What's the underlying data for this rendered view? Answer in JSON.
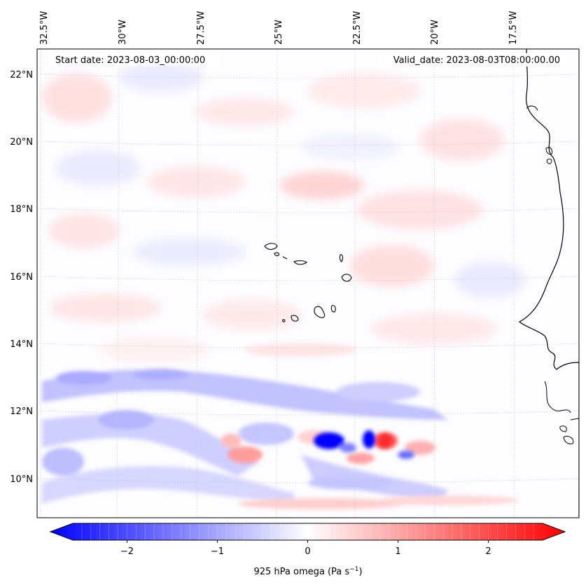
{
  "map": {
    "start_date": "Start date: 2023-08-03_00:00:00",
    "valid_date": "Valid_date: 2023-08-03T08:00:00.00",
    "lon_labels": [
      "32.5°W",
      "30°W",
      "27.5°W",
      "25°W",
      "22.5°W",
      "20°W",
      "17.5°W"
    ],
    "lat_labels": [
      "22°N",
      "20°N",
      "18°N",
      "16°N",
      "14°N",
      "12°N",
      "10°N"
    ]
  },
  "colorbar": {
    "label": "925 hPa omega (Pa s",
    "label_sup": "−1",
    "label_close": ")",
    "ticks": [
      "−2",
      "−1",
      "0",
      "1",
      "2"
    ],
    "range": [
      -2.6,
      2.6
    ],
    "colors": {
      "negative": "#0000ff",
      "zero": "#ffffff",
      "positive": "#ff0000"
    }
  }
}
